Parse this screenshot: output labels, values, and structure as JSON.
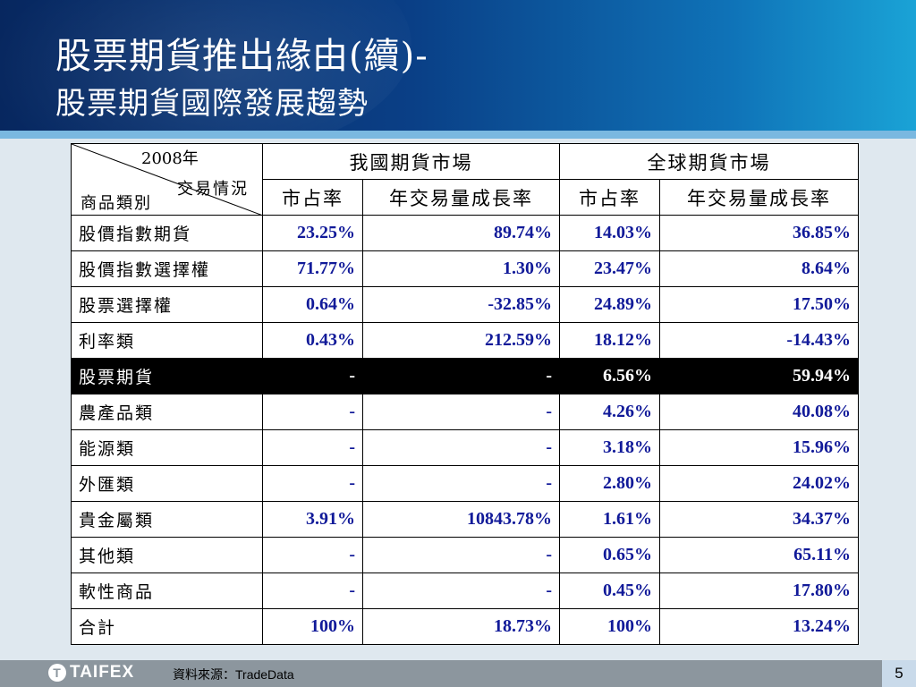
{
  "slide": {
    "title_line1": "股票期貨推出緣由(續)-",
    "title_line2": "股票期貨國際發展趨勢",
    "page_number": "5"
  },
  "table": {
    "corner": {
      "year": "2008年",
      "trading": "交易情況",
      "product": "商品類別"
    },
    "groups": [
      "我國期貨市場",
      "全球期貨市場"
    ],
    "subheaders": [
      "市占率",
      "年交易量成長率",
      "市占率",
      "年交易量成長率"
    ],
    "rows": [
      {
        "name": "股價指數期貨",
        "values": [
          "23.25%",
          "89.74%",
          "14.03%",
          "36.85%"
        ]
      },
      {
        "name": "股價指數選擇權",
        "values": [
          "71.77%",
          "1.30%",
          "23.47%",
          "8.64%"
        ]
      },
      {
        "name": "股票選擇權",
        "values": [
          "0.64%",
          "-32.85%",
          "24.89%",
          "17.50%"
        ]
      },
      {
        "name": "利率類",
        "values": [
          "0.43%",
          "212.59%",
          "18.12%",
          "-14.43%"
        ]
      },
      {
        "name": "股票期貨",
        "values": [
          "-",
          "-",
          "6.56%",
          "59.94%"
        ]
      },
      {
        "name": "農產品類",
        "values": [
          "-",
          "-",
          "4.26%",
          "40.08%"
        ]
      },
      {
        "name": "能源類",
        "values": [
          "-",
          "-",
          "3.18%",
          "15.96%"
        ]
      },
      {
        "name": "外匯類",
        "values": [
          "-",
          "-",
          "2.80%",
          "24.02%"
        ]
      },
      {
        "name": "貴金屬類",
        "values": [
          "3.91%",
          "10843.78%",
          "1.61%",
          "34.37%"
        ]
      },
      {
        "name": "其他類",
        "values": [
          "-",
          "-",
          "0.65%",
          "65.11%"
        ]
      },
      {
        "name": "軟性商品",
        "values": [
          "-",
          "-",
          "0.45%",
          "17.80%"
        ]
      },
      {
        "name": "合計",
        "values": [
          "100%",
          "18.73%",
          "100%",
          "13.24%"
        ]
      }
    ],
    "highlighted_row": "股票期貨"
  },
  "footer": {
    "logo": "TAIFEX",
    "source": "資料來源：TradeData"
  }
}
